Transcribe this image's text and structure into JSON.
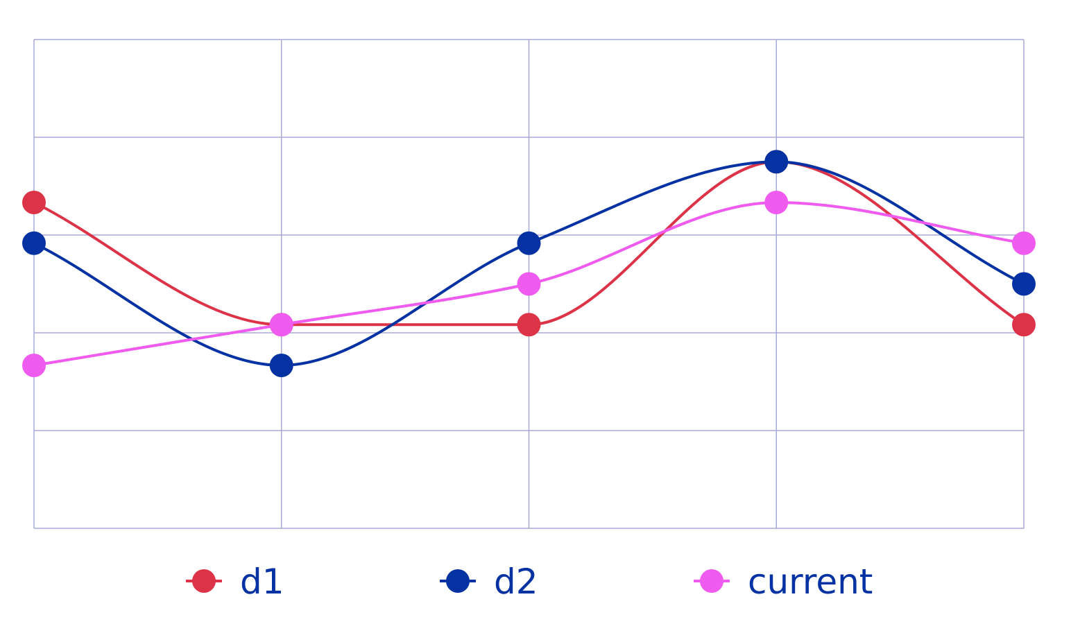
{
  "chart_data": {
    "type": "line",
    "smooth": true,
    "categories": [
      "",
      "",
      "",
      "",
      ""
    ],
    "ylim": [
      0,
      12
    ],
    "grid": true,
    "legend_position": "bottom",
    "series": [
      {
        "name": "d1",
        "color": "#dc3348",
        "values": [
          8,
          5,
          5,
          9,
          5
        ]
      },
      {
        "name": "d2",
        "color": "#0432a3",
        "values": [
          7,
          4,
          7,
          9,
          6
        ]
      },
      {
        "name": "current",
        "color": "#ef5aef",
        "values": [
          4,
          5,
          6,
          8,
          7
        ]
      }
    ],
    "legend_text_color": "#0432a3",
    "grid_color": "#a8a8d8"
  }
}
